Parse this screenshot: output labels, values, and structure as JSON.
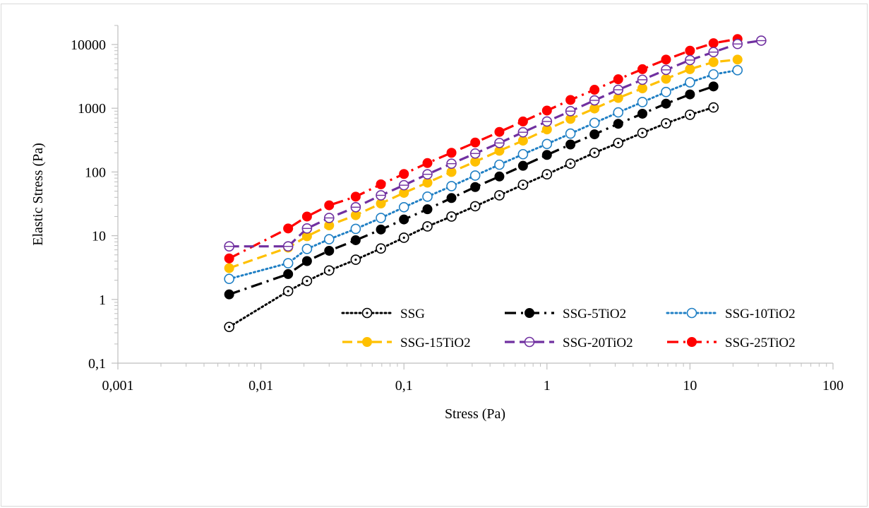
{
  "chart_data": {
    "type": "scatter",
    "title": "",
    "xlabel": "Stress (Pa)",
    "ylabel": "Elastic Stress (Pa)",
    "x_scale": "log",
    "y_scale": "log",
    "xlim": [
      0.001,
      100
    ],
    "ylim": [
      0.1,
      10000
    ],
    "x_tick_labels": [
      "0,001",
      "0,01",
      "0,1",
      "1",
      "10",
      "100"
    ],
    "y_tick_labels": [
      "0,1",
      "1",
      "10",
      "100",
      "1000",
      "10000"
    ],
    "grid": false,
    "legend_position": "bottom-right",
    "series": [
      {
        "name": "SSG",
        "color": "#000000",
        "line_style": "dotted",
        "marker": "open-circle-dot",
        "x": [
          0.006,
          0.0155,
          0.021,
          0.03,
          0.046,
          0.069,
          0.1,
          0.146,
          0.215,
          0.315,
          0.465,
          0.68,
          1.0,
          1.46,
          2.15,
          3.15,
          4.65,
          6.8,
          10.0,
          14.6
        ],
        "y": [
          0.37,
          1.35,
          1.95,
          2.85,
          4.2,
          6.3,
          9.3,
          14,
          20,
          29,
          43,
          63,
          92,
          135,
          200,
          285,
          410,
          580,
          790,
          1030
        ]
      },
      {
        "name": "SSG-5TiO2",
        "color": "#000000",
        "line_style": "dash-dot",
        "marker": "filled-circle",
        "x": [
          0.006,
          0.0155,
          0.021,
          0.03,
          0.046,
          0.069,
          0.1,
          0.146,
          0.215,
          0.315,
          0.465,
          0.68,
          1.0,
          1.46,
          2.15,
          3.15,
          4.65,
          6.8,
          10.0,
          14.6
        ],
        "y": [
          1.2,
          2.5,
          4.0,
          5.8,
          8.5,
          12.5,
          18,
          26,
          39,
          58,
          85,
          125,
          185,
          270,
          390,
          570,
          820,
          1180,
          1650,
          2200
        ]
      },
      {
        "name": "SSG-10TiO2",
        "color": "#1f7fc4",
        "line_style": "dotted",
        "marker": "open-circle",
        "x": [
          0.006,
          0.0155,
          0.021,
          0.03,
          0.046,
          0.069,
          0.1,
          0.146,
          0.215,
          0.315,
          0.465,
          0.68,
          1.0,
          1.46,
          2.15,
          3.15,
          4.65,
          6.8,
          10.0,
          14.6,
          21.5
        ],
        "y": [
          2.1,
          3.7,
          6.2,
          8.8,
          12.8,
          19,
          28,
          41,
          60,
          88,
          130,
          190,
          275,
          400,
          590,
          860,
          1250,
          1800,
          2550,
          3400,
          3950
        ]
      },
      {
        "name": "SSG-15TiO2",
        "color": "#ffc000",
        "line_style": "dashed",
        "marker": "filled-circle",
        "x": [
          0.006,
          0.0155,
          0.021,
          0.03,
          0.046,
          0.069,
          0.1,
          0.146,
          0.215,
          0.315,
          0.465,
          0.68,
          1.0,
          1.46,
          2.15,
          3.15,
          4.65,
          6.8,
          10.0,
          14.6,
          21.5
        ],
        "y": [
          3.1,
          6.5,
          9.8,
          14.5,
          21,
          32,
          47,
          68,
          100,
          145,
          215,
          310,
          465,
          680,
          990,
          1450,
          2050,
          2900,
          4100,
          5300,
          5800
        ]
      },
      {
        "name": "SSG-20TiO2",
        "color": "#7030a0",
        "line_style": "dashed",
        "marker": "open-circle-line",
        "x": [
          0.006,
          0.0155,
          0.021,
          0.03,
          0.046,
          0.069,
          0.1,
          0.146,
          0.215,
          0.315,
          0.465,
          0.68,
          1.0,
          1.46,
          2.15,
          3.15,
          4.65,
          6.8,
          10.0,
          14.6,
          21.5,
          31.5
        ],
        "y": [
          6.8,
          6.8,
          13,
          19,
          28,
          43,
          62,
          92,
          135,
          195,
          285,
          420,
          620,
          900,
          1330,
          1950,
          2800,
          4000,
          5700,
          7600,
          10200,
          11500
        ]
      },
      {
        "name": "SSG-25TiO2",
        "color": "#ff0000",
        "line_style": "dash-dot",
        "marker": "filled-circle",
        "x": [
          0.006,
          0.0155,
          0.021,
          0.03,
          0.046,
          0.069,
          0.1,
          0.146,
          0.215,
          0.315,
          0.465,
          0.68,
          1.0,
          1.46,
          2.15,
          3.15,
          4.65,
          6.8,
          10.0,
          14.6,
          21.5
        ],
        "y": [
          4.4,
          13,
          20,
          30,
          41,
          64,
          93,
          138,
          200,
          290,
          425,
          620,
          920,
          1350,
          1950,
          2850,
          4100,
          5800,
          8000,
          10500,
          12200
        ]
      }
    ]
  }
}
